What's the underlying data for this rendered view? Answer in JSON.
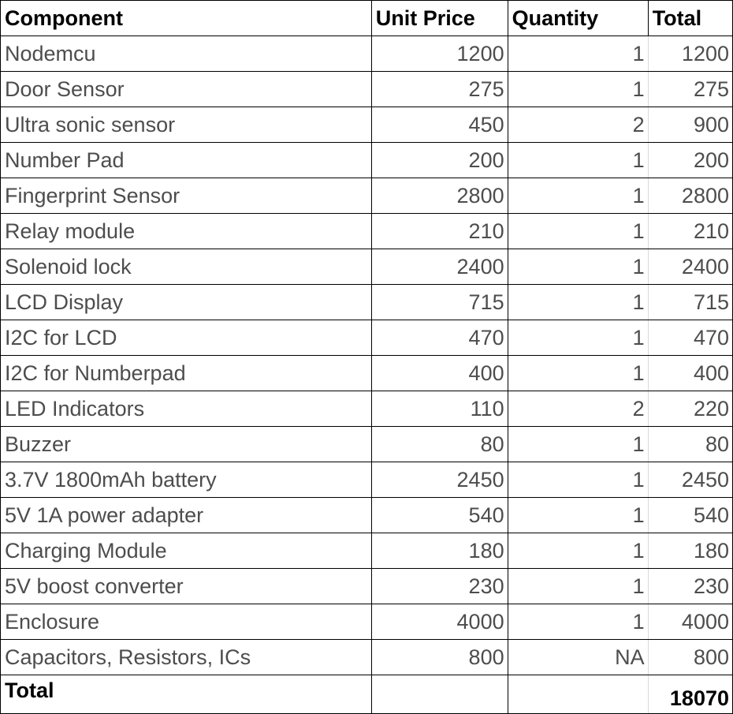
{
  "table": {
    "headers": {
      "component": "Component",
      "unit_price": "Unit Price",
      "quantity": "Quantity",
      "total": "Total"
    },
    "rows": [
      {
        "component": "Nodemcu",
        "unit_price": "1200",
        "quantity": "1",
        "total": "1200"
      },
      {
        "component": "Door Sensor",
        "unit_price": "275",
        "quantity": "1",
        "total": "275"
      },
      {
        "component": "Ultra sonic sensor",
        "unit_price": "450",
        "quantity": "2",
        "total": "900"
      },
      {
        "component": "Number  Pad",
        "unit_price": "200",
        "quantity": "1",
        "total": "200"
      },
      {
        "component": "Fingerprint Sensor",
        "unit_price": "2800",
        "quantity": "1",
        "total": "2800"
      },
      {
        "component": "Relay module",
        "unit_price": "210",
        "quantity": "1",
        "total": "210"
      },
      {
        "component": "Solenoid lock",
        "unit_price": "2400",
        "quantity": "1",
        "total": "2400"
      },
      {
        "component": "LCD Display",
        "unit_price": "715",
        "quantity": "1",
        "total": "715"
      },
      {
        "component": "I2C for LCD",
        "unit_price": "470",
        "quantity": "1",
        "total": "470"
      },
      {
        "component": "I2C for Numberpad",
        "unit_price": "400",
        "quantity": "1",
        "total": "400"
      },
      {
        "component": "LED Indicators",
        "unit_price": "110",
        "quantity": "2",
        "total": "220"
      },
      {
        "component": "Buzzer",
        "unit_price": "80",
        "quantity": "1",
        "total": "80"
      },
      {
        "component": "3.7V 1800mAh battery",
        "unit_price": "2450",
        "quantity": "1",
        "total": "2450"
      },
      {
        "component": "5V 1A power adapter",
        "unit_price": "540",
        "quantity": "1",
        "total": "540"
      },
      {
        "component": "Charging Module",
        "unit_price": "180",
        "quantity": "1",
        "total": "180"
      },
      {
        "component": "5V boost converter",
        "unit_price": "230",
        "quantity": "1",
        "total": "230"
      },
      {
        "component": "Enclosure",
        "unit_price": "4000",
        "quantity": "1",
        "total": "4000"
      },
      {
        "component": "Capacitors, Resistors, ICs",
        "unit_price": "800",
        "quantity": "NA",
        "total": "800"
      }
    ],
    "footer": {
      "label": "Total",
      "unit_price": "",
      "quantity": "",
      "grand_total": "18070"
    }
  }
}
